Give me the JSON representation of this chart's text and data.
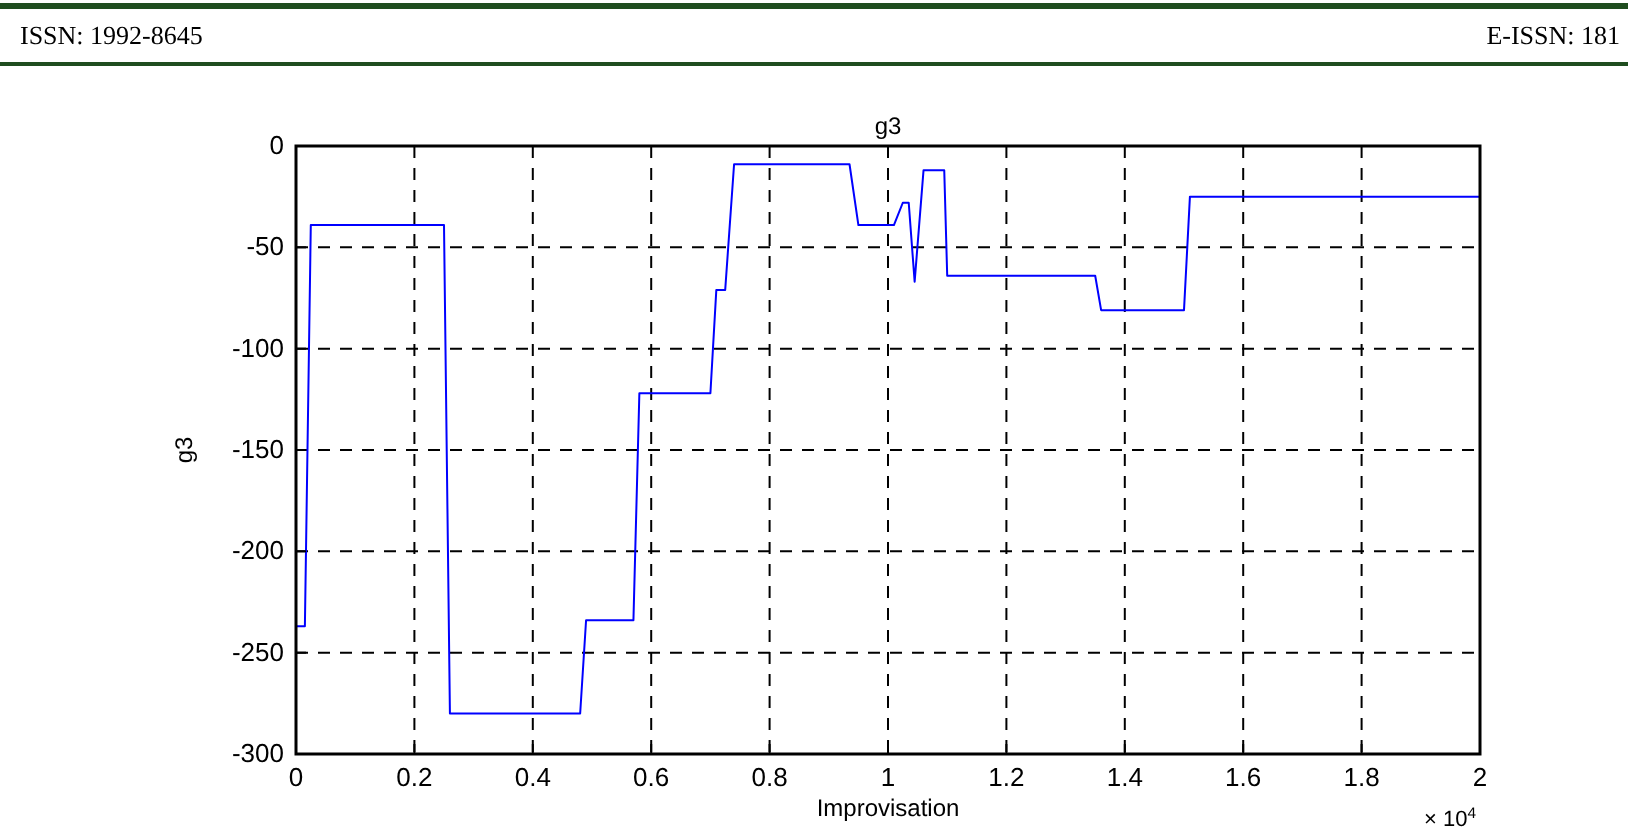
{
  "chart_data": {
    "type": "line",
    "title": "g3",
    "xlabel": "Improvisation",
    "ylabel": "g3",
    "annotations": [
      "ISSN: 1992-8645",
      "E-ISSN: 181",
      "× 10$^{4}$"
    ],
    "x": [
      0,
      0.015,
      0.025,
      0.25,
      0.26,
      0.48,
      0.49,
      0.57,
      0.58,
      0.7,
      0.71,
      0.725,
      0.74,
      0.935,
      0.95,
      1.01,
      1.025,
      1.035,
      1.045,
      1.06,
      1.095,
      1.1,
      1.35,
      1.36,
      1.5,
      1.51,
      2
    ],
    "series": [
      {
        "color": "#0000ff",
        "values": [
          -237,
          -237,
          -39,
          -39,
          -280,
          -280,
          -234,
          -234,
          -122,
          -122,
          -71,
          -71,
          -9,
          -9,
          -39,
          -39,
          -28,
          -28,
          -67,
          -12,
          -12,
          -64,
          -64,
          -81,
          -81,
          -25,
          -25
        ]
      }
    ],
    "xlim": [
      0,
      2
    ],
    "xticks": [
      0,
      0.2,
      0.4,
      0.6,
      0.8,
      1,
      1.2,
      1.4,
      1.6,
      1.8,
      2
    ],
    "ylim": [
      -300,
      0
    ],
    "yticks": [
      -300,
      -250,
      -200,
      -150,
      -100,
      -50,
      0
    ],
    "grid": true,
    "line_style": "solid",
    "marker": "none"
  }
}
